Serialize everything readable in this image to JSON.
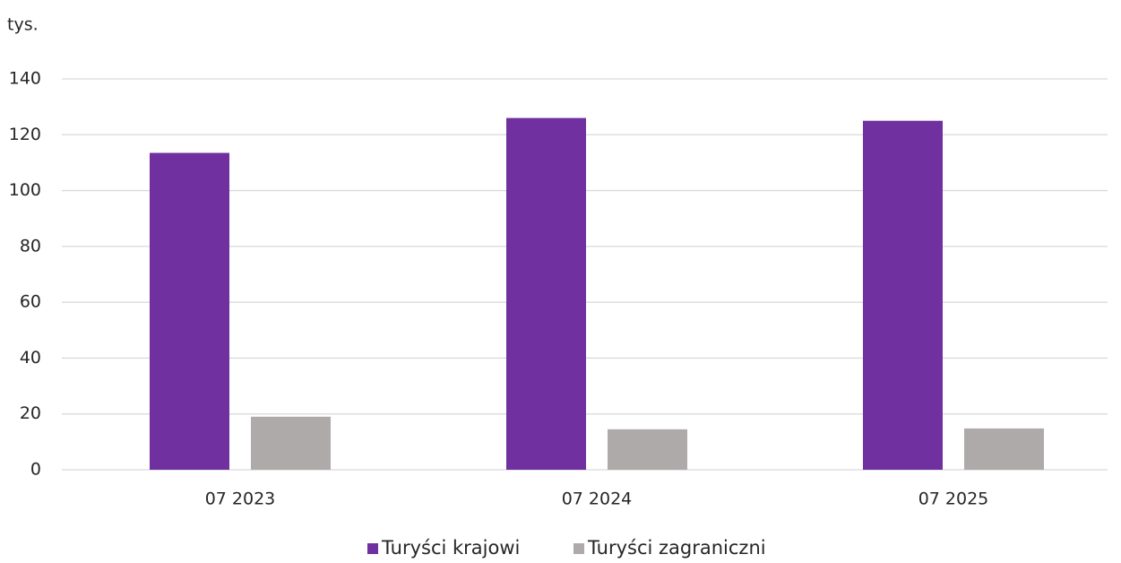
{
  "chart_data": {
    "type": "bar",
    "y_axis_label": "tys.",
    "categories": [
      "07 2023",
      "07 2024",
      "07 2025"
    ],
    "series": [
      {
        "name": "Turyści krajowi",
        "color": "#7030a0",
        "values": [
          113.5,
          126,
          125
        ]
      },
      {
        "name": "Turyści zagraniczni",
        "color": "#aeaaaa",
        "values": [
          19,
          14.5,
          14.8
        ]
      }
    ],
    "ylim": [
      0,
      140
    ],
    "yticks": [
      0,
      20,
      40,
      60,
      80,
      100,
      120,
      140
    ],
    "grid": true,
    "legend": "bottom"
  }
}
